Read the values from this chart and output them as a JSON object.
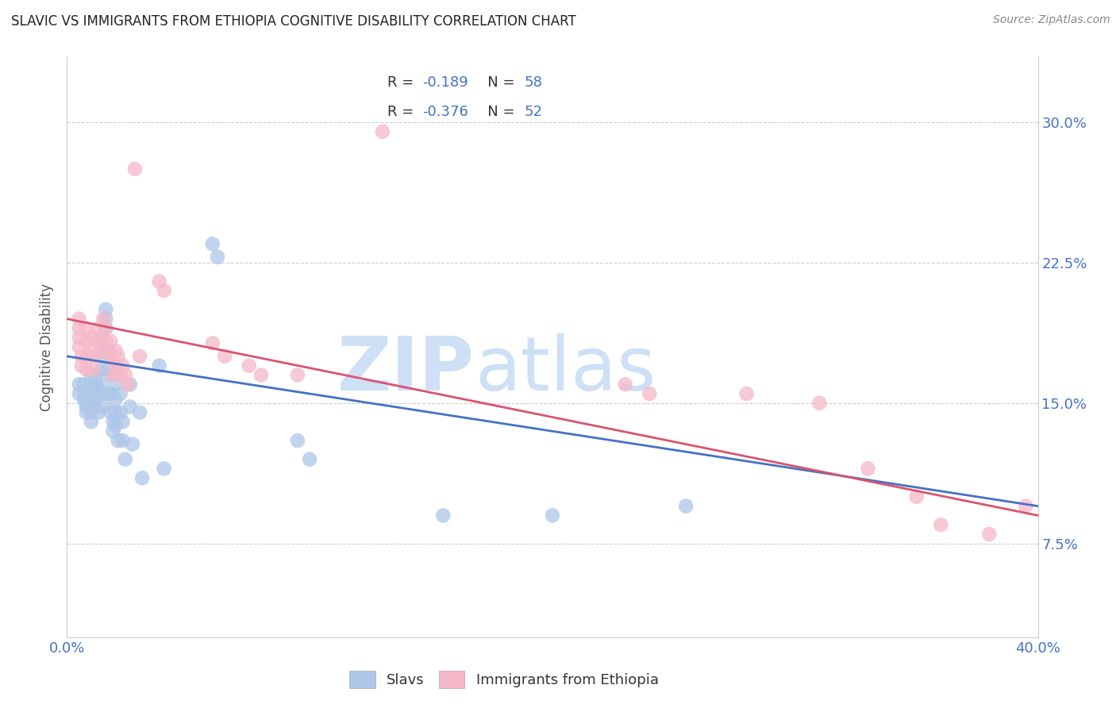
{
  "title": "SLAVIC VS IMMIGRANTS FROM ETHIOPIA COGNITIVE DISABILITY CORRELATION CHART",
  "source": "Source: ZipAtlas.com",
  "ylabel": "Cognitive Disability",
  "ytick_vals": [
    0.075,
    0.15,
    0.225,
    0.3
  ],
  "xlim": [
    0.0,
    0.4
  ],
  "ylim": [
    0.025,
    0.335
  ],
  "slavs_color": "#aec6e8",
  "ethiopia_color": "#f5b8c8",
  "slavs_line_color": "#4472c4",
  "ethiopia_line_color": "#d9546e",
  "watermark_zip_color": "#cde0f5",
  "watermark_atlas_color": "#cde0f5",
  "slavs_x": [
    0.005,
    0.005,
    0.007,
    0.007,
    0.007,
    0.008,
    0.008,
    0.008,
    0.01,
    0.01,
    0.01,
    0.01,
    0.01,
    0.01,
    0.012,
    0.012,
    0.012,
    0.012,
    0.013,
    0.014,
    0.014,
    0.014,
    0.014,
    0.015,
    0.016,
    0.016,
    0.016,
    0.016,
    0.017,
    0.017,
    0.018,
    0.018,
    0.018,
    0.019,
    0.019,
    0.02,
    0.02,
    0.02,
    0.02,
    0.021,
    0.022,
    0.022,
    0.023,
    0.023,
    0.024,
    0.026,
    0.026,
    0.027,
    0.03,
    0.031,
    0.038,
    0.04,
    0.06,
    0.062,
    0.095,
    0.1,
    0.155,
    0.2,
    0.255
  ],
  "slavs_y": [
    0.16,
    0.155,
    0.16,
    0.155,
    0.152,
    0.15,
    0.148,
    0.145,
    0.165,
    0.16,
    0.155,
    0.15,
    0.145,
    0.14,
    0.165,
    0.16,
    0.157,
    0.152,
    0.145,
    0.175,
    0.168,
    0.16,
    0.155,
    0.148,
    0.2,
    0.195,
    0.19,
    0.18,
    0.168,
    0.155,
    0.165,
    0.155,
    0.145,
    0.14,
    0.135,
    0.16,
    0.152,
    0.145,
    0.138,
    0.13,
    0.155,
    0.145,
    0.14,
    0.13,
    0.12,
    0.16,
    0.148,
    0.128,
    0.145,
    0.11,
    0.17,
    0.115,
    0.235,
    0.228,
    0.13,
    0.12,
    0.09,
    0.09,
    0.095
  ],
  "ethiopia_x": [
    0.005,
    0.005,
    0.005,
    0.005,
    0.006,
    0.006,
    0.008,
    0.008,
    0.008,
    0.008,
    0.01,
    0.01,
    0.011,
    0.011,
    0.013,
    0.013,
    0.014,
    0.014,
    0.015,
    0.016,
    0.016,
    0.017,
    0.018,
    0.018,
    0.019,
    0.019,
    0.02,
    0.021,
    0.021,
    0.022,
    0.023,
    0.024,
    0.025,
    0.028,
    0.03,
    0.038,
    0.04,
    0.06,
    0.065,
    0.075,
    0.08,
    0.095,
    0.13,
    0.23,
    0.24,
    0.28,
    0.31,
    0.33,
    0.35,
    0.36,
    0.38,
    0.395
  ],
  "ethiopia_y": [
    0.195,
    0.19,
    0.185,
    0.18,
    0.175,
    0.17,
    0.19,
    0.183,
    0.175,
    0.168,
    0.185,
    0.178,
    0.175,
    0.168,
    0.19,
    0.183,
    0.185,
    0.178,
    0.195,
    0.19,
    0.183,
    0.178,
    0.183,
    0.175,
    0.172,
    0.165,
    0.178,
    0.175,
    0.168,
    0.165,
    0.17,
    0.165,
    0.16,
    0.275,
    0.175,
    0.215,
    0.21,
    0.182,
    0.175,
    0.17,
    0.165,
    0.165,
    0.295,
    0.16,
    0.155,
    0.155,
    0.15,
    0.115,
    0.1,
    0.085,
    0.08,
    0.095
  ]
}
